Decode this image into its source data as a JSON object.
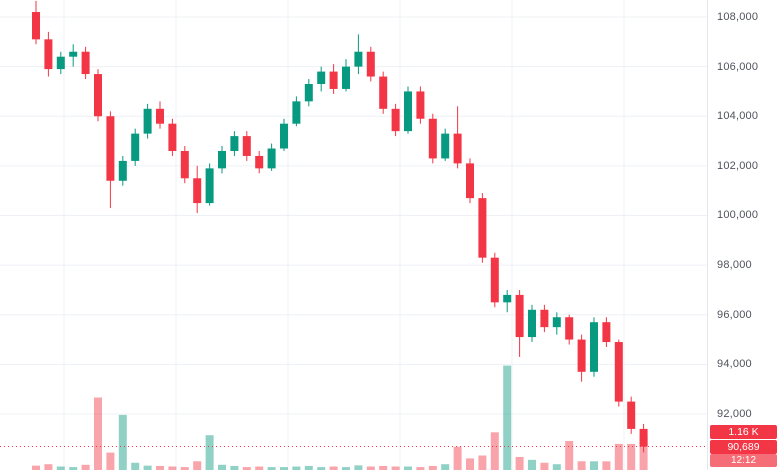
{
  "chart_data": {
    "type": "candlestick",
    "title": "",
    "xlabel": "",
    "ylabel": "",
    "grid": true,
    "ylim": [
      89743,
      108685
    ],
    "y_ticks": [
      {
        "value": 108000,
        "label": "108,000"
      },
      {
        "value": 106000,
        "label": "106,000"
      },
      {
        "value": 104000,
        "label": "104,000"
      },
      {
        "value": 102000,
        "label": "102,000"
      },
      {
        "value": 100000,
        "label": "100,000"
      },
      {
        "value": 98000,
        "label": "98,000"
      },
      {
        "value": 96000,
        "label": "96,000"
      },
      {
        "value": 94000,
        "label": "94,000"
      },
      {
        "value": 92000,
        "label": "92,000"
      }
    ],
    "candles_ohlc": [
      [
        108200,
        108650,
        106900,
        107100
      ],
      [
        107100,
        107400,
        105600,
        105900
      ],
      [
        105900,
        106600,
        105700,
        106400
      ],
      [
        106400,
        106900,
        106000,
        106600
      ],
      [
        106600,
        106800,
        105500,
        105700
      ],
      [
        105700,
        105900,
        103800,
        104000
      ],
      [
        104000,
        104200,
        100300,
        101400
      ],
      [
        101400,
        102400,
        101200,
        102200
      ],
      [
        102200,
        103500,
        102000,
        103300
      ],
      [
        103300,
        104500,
        103100,
        104300
      ],
      [
        104300,
        104600,
        103500,
        103700
      ],
      [
        103700,
        103900,
        102400,
        102600
      ],
      [
        102600,
        102800,
        101300,
        101500
      ],
      [
        101500,
        102000,
        100100,
        100500
      ],
      [
        100500,
        102100,
        100400,
        101900
      ],
      [
        101900,
        102800,
        101700,
        102600
      ],
      [
        102600,
        103400,
        102400,
        103200
      ],
      [
        103200,
        103400,
        102200,
        102400
      ],
      [
        102400,
        102600,
        101700,
        101900
      ],
      [
        101900,
        102900,
        101800,
        102700
      ],
      [
        102700,
        103900,
        102600,
        103700
      ],
      [
        103700,
        104800,
        103600,
        104600
      ],
      [
        104600,
        105500,
        104400,
        105300
      ],
      [
        105300,
        106000,
        105000,
        105800
      ],
      [
        105800,
        106100,
        104900,
        105100
      ],
      [
        105100,
        106300,
        105000,
        106000
      ],
      [
        106000,
        107300,
        105700,
        106600
      ],
      [
        106600,
        106800,
        105400,
        105600
      ],
      [
        105600,
        105800,
        104100,
        104300
      ],
      [
        104300,
        104500,
        103200,
        103400
      ],
      [
        103400,
        105200,
        103300,
        105000
      ],
      [
        105000,
        105200,
        103700,
        103900
      ],
      [
        103900,
        104100,
        102100,
        102300
      ],
      [
        102300,
        103500,
        102200,
        103300
      ],
      [
        103300,
        104400,
        101900,
        102100
      ],
      [
        102100,
        102300,
        100500,
        100700
      ],
      [
        100700,
        100900,
        98100,
        98300
      ],
      [
        98300,
        98500,
        96300,
        96500
      ],
      [
        96500,
        97000,
        96100,
        96800
      ],
      [
        96800,
        97000,
        94300,
        95100
      ],
      [
        95100,
        96400,
        94900,
        96200
      ],
      [
        96200,
        96400,
        95300,
        95500
      ],
      [
        95500,
        96100,
        95200,
        95900
      ],
      [
        95900,
        96000,
        94800,
        95000
      ],
      [
        95000,
        95200,
        93300,
        93700
      ],
      [
        93700,
        95900,
        93500,
        95700
      ],
      [
        95700,
        95900,
        94700,
        94900
      ],
      [
        94900,
        95000,
        92300,
        92500
      ],
      [
        92500,
        92700,
        91200,
        91400
      ],
      [
        91400,
        91600,
        90450,
        90689
      ]
    ],
    "volumes_k": [
      0.15,
      0.2,
      0.12,
      0.1,
      0.18,
      2.5,
      0.6,
      1.9,
      0.25,
      0.15,
      0.14,
      0.12,
      0.1,
      0.3,
      1.2,
      0.18,
      0.14,
      0.1,
      0.12,
      0.1,
      0.1,
      0.12,
      0.14,
      0.1,
      0.12,
      0.1,
      0.16,
      0.12,
      0.14,
      0.12,
      0.12,
      0.1,
      0.14,
      0.2,
      0.8,
      0.4,
      0.5,
      1.3,
      3.6,
      0.45,
      0.35,
      0.25,
      0.2,
      1.0,
      0.3,
      0.3,
      0.3,
      0.9,
      0.9,
      1.16
    ],
    "last_price_value": 90689,
    "last_price_label": "90,689",
    "last_volume_label": "1.16 K",
    "countdown_label": "12:12",
    "colors": {
      "up": "#089981",
      "down": "#f23645",
      "volume_up": "rgba(8,153,129,0.45)",
      "volume_down": "rgba(242,54,69,0.45)",
      "grid": "#edf0f5",
      "axis_text": "#50535c",
      "badge_bg": "#f23645",
      "countdown_bg": "#f56d76",
      "last_price_line": "#f23645"
    }
  }
}
